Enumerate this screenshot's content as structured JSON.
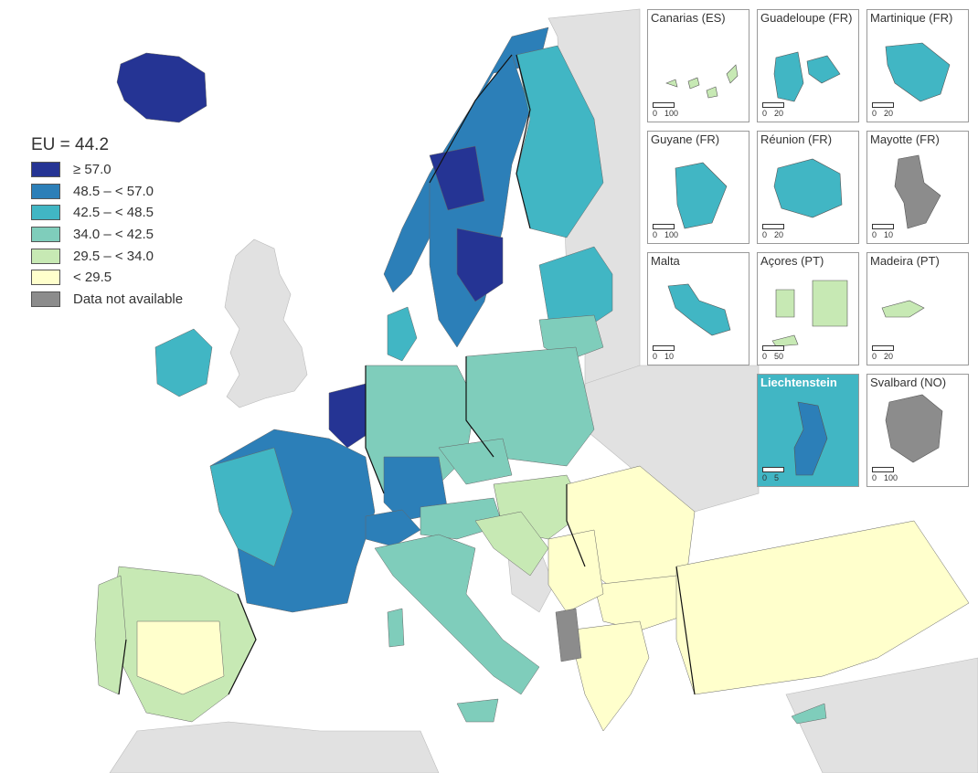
{
  "legend": {
    "title": "EU = 44.2",
    "classes": [
      {
        "label": "≥ 57.0",
        "color": "#253494"
      },
      {
        "label": "48.5 – < 57.0",
        "color": "#2c7fb8"
      },
      {
        "label": "42.5 – < 48.5",
        "color": "#41b6c4"
      },
      {
        "label": "34.0 – < 42.5",
        "color": "#7fcdbb"
      },
      {
        "label": "29.5 – < 34.0",
        "color": "#c7e9b4"
      },
      {
        "label": "< 29.5",
        "color": "#ffffcc"
      },
      {
        "label": "Data not available",
        "color": "#8c8c8c"
      }
    ]
  },
  "insets": [
    {
      "title": "Canarias (ES)",
      "scale": [
        "0",
        "100"
      ]
    },
    {
      "title": "Guadeloupe (FR)",
      "scale": [
        "0",
        "20"
      ]
    },
    {
      "title": "Martinique (FR)",
      "scale": [
        "0",
        "20"
      ]
    },
    {
      "title": "Guyane (FR)",
      "scale": [
        "0",
        "100"
      ]
    },
    {
      "title": "Réunion (FR)",
      "scale": [
        "0",
        "20"
      ]
    },
    {
      "title": "Mayotte (FR)",
      "scale": [
        "0",
        "10"
      ]
    },
    {
      "title": "Malta",
      "scale": [
        "0",
        "10"
      ]
    },
    {
      "title": "Açores (PT)",
      "scale": [
        "0",
        "50"
      ]
    },
    {
      "title": "Madeira (PT)",
      "scale": [
        "0",
        "20"
      ]
    },
    {
      "title": "Liechtenstein",
      "scale": [
        "0",
        "5"
      ]
    },
    {
      "title": "Svalbard (NO)",
      "scale": [
        "0",
        "100"
      ]
    }
  ],
  "colors": {
    "non_eu_land": "#e1e1e1",
    "sea": "#ffffff",
    "border": "#111111"
  }
}
